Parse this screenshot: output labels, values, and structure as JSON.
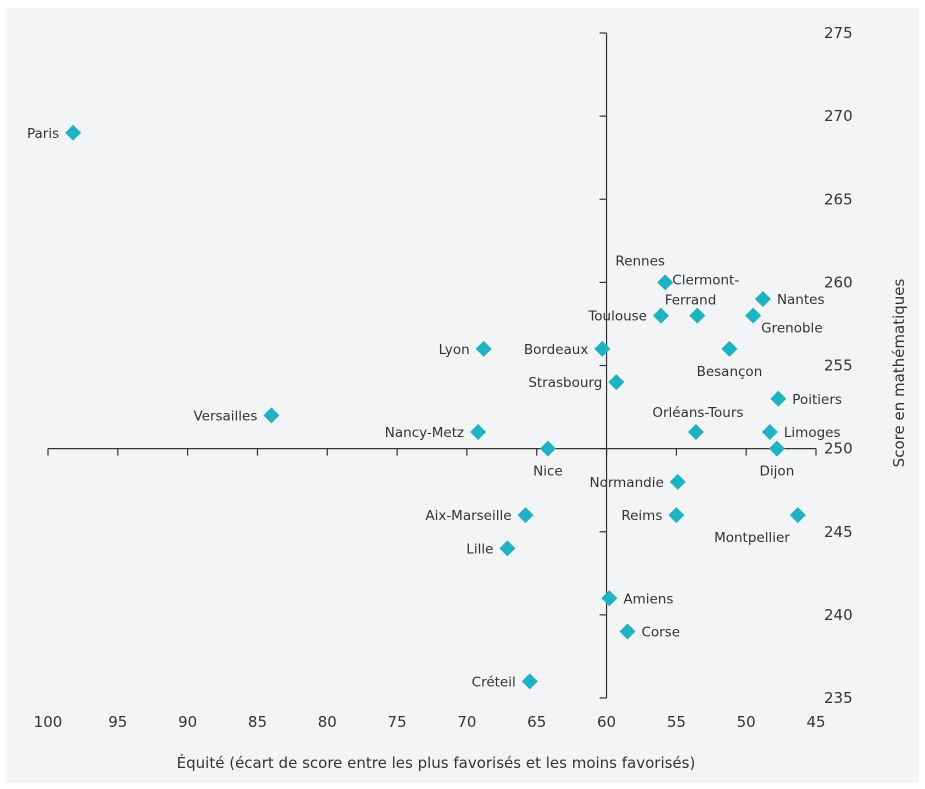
{
  "chart_data": {
    "type": "scatter",
    "title": "",
    "xlabel": "Équité (écart de score entre les plus favorisés et les moins favorisés)",
    "ylabel": "Score en mathématiques",
    "xlim": [
      100,
      45
    ],
    "ylim": [
      235,
      275
    ],
    "x_reversed": true,
    "x_ticks": [
      100,
      95,
      90,
      85,
      80,
      75,
      70,
      65,
      60,
      55,
      50,
      45
    ],
    "y_ticks": [
      235,
      240,
      245,
      250,
      255,
      260,
      265,
      270,
      275
    ],
    "x_axis_at_y": 250,
    "y_axis_at_x": 60,
    "marker": "diamond",
    "marker_color": "#1fb3c2",
    "points": [
      {
        "label": "Paris",
        "x": 98.2,
        "y": 269,
        "label_pos": "left"
      },
      {
        "label": "Versailles",
        "x": 84,
        "y": 252,
        "label_pos": "left"
      },
      {
        "label": "Lyon",
        "x": 68.8,
        "y": 256,
        "label_pos": "left"
      },
      {
        "label": "Nancy-Metz",
        "x": 69.2,
        "y": 251,
        "label_pos": "left"
      },
      {
        "label": "Nice",
        "x": 64.2,
        "y": 250,
        "label_pos": "below"
      },
      {
        "label": "Aix-Marseille",
        "x": 65.8,
        "y": 246,
        "label_pos": "left"
      },
      {
        "label": "Lille",
        "x": 67.1,
        "y": 244,
        "label_pos": "left"
      },
      {
        "label": "Créteil",
        "x": 65.5,
        "y": 236,
        "label_pos": "left"
      },
      {
        "label": "Bordeaux",
        "x": 60.3,
        "y": 256,
        "label_pos": "left"
      },
      {
        "label": "Strasbourg",
        "x": 59.3,
        "y": 254,
        "label_pos": "left"
      },
      {
        "label": "Amiens",
        "x": 59.8,
        "y": 241,
        "label_pos": "right"
      },
      {
        "label": "Corse",
        "x": 58.5,
        "y": 239,
        "label_pos": "right"
      },
      {
        "label": "Rennes",
        "x": 55.8,
        "y": 260,
        "label_pos": "above-left"
      },
      {
        "label": "Toulouse",
        "x": 56.1,
        "y": 258,
        "label_pos": "left"
      },
      {
        "label": "Clermont-Ferrand",
        "x": 53.5,
        "y": 258,
        "label_pos": "clermont"
      },
      {
        "label": "Besançon",
        "x": 51.2,
        "y": 256,
        "label_pos": "below"
      },
      {
        "label": "Grenoble",
        "x": 49.5,
        "y": 258,
        "label_pos": "below-right"
      },
      {
        "label": "Nantes",
        "x": 48.8,
        "y": 259,
        "label_pos": "right"
      },
      {
        "label": "Poitiers",
        "x": 47.7,
        "y": 253,
        "label_pos": "right"
      },
      {
        "label": "Orléans-Tours",
        "x": 53.6,
        "y": 251,
        "label_pos": "above"
      },
      {
        "label": "Limoges",
        "x": 48.3,
        "y": 251,
        "label_pos": "right"
      },
      {
        "label": "Dijon",
        "x": 47.8,
        "y": 250,
        "label_pos": "below"
      },
      {
        "label": "Normandie",
        "x": 54.9,
        "y": 248,
        "label_pos": "left"
      },
      {
        "label": "Reims",
        "x": 55,
        "y": 246,
        "label_pos": "left"
      },
      {
        "label": "Montpellier",
        "x": 46.3,
        "y": 246,
        "label_pos": "below-left"
      }
    ]
  }
}
